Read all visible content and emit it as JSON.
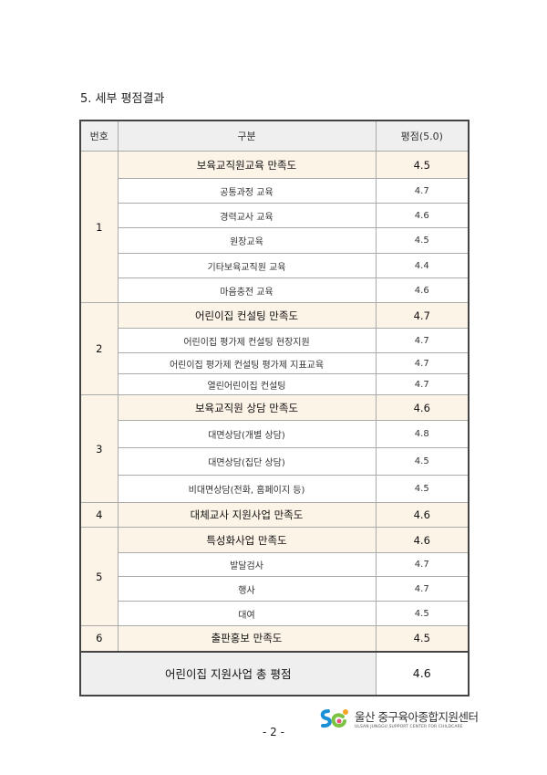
{
  "heading": "5. 세부 평점결과",
  "table": {
    "headers": [
      "번호",
      "구분",
      "평점(5.0)"
    ],
    "groups": [
      {
        "no": "1",
        "summary": {
          "label": "보육교직원교육 만족도",
          "score": "4.5"
        },
        "items": [
          {
            "label": "공통과정 교육",
            "score": "4.7"
          },
          {
            "label": "경력교사 교육",
            "score": "4.6"
          },
          {
            "label": "원장교육",
            "score": "4.5"
          },
          {
            "label": "기타보육교직원 교육",
            "score": "4.4"
          },
          {
            "label": "마음충전 교육",
            "score": "4.6"
          }
        ]
      },
      {
        "no": "2",
        "summary": {
          "label": "어린이집 컨설팅 만족도",
          "score": "4.7"
        },
        "items": [
          {
            "label": "어린이집 평가제 컨설팅 현장지원",
            "score": "4.7"
          },
          {
            "label": "어린이집 평가제 컨설팅 평가제 지표교육",
            "score": "4.7"
          },
          {
            "label": "열린어린이집 컨설팅",
            "score": "4.7"
          }
        ]
      },
      {
        "no": "3",
        "summary": {
          "label": "보육교직원 상담 만족도",
          "score": "4.6"
        },
        "items": [
          {
            "label": "대면상담(개별 상담)",
            "score": "4.8"
          },
          {
            "label": "대면상담(집단 상담)",
            "score": "4.5"
          },
          {
            "label": "비대면상담(전화, 홈페이지 등)",
            "score": "4.5"
          }
        ]
      },
      {
        "no": "4",
        "summary": {
          "label": "대체교사 지원사업 만족도",
          "score": "4.6"
        },
        "items": []
      },
      {
        "no": "5",
        "summary": {
          "label": "특성화사업 만족도",
          "score": "4.6"
        },
        "items": [
          {
            "label": "발달검사",
            "score": "4.7"
          },
          {
            "label": "행사",
            "score": "4.7"
          },
          {
            "label": "대여",
            "score": "4.5"
          }
        ]
      },
      {
        "no": "6",
        "summary": {
          "label": "출판홍보 만족도",
          "score": "4.5"
        },
        "items": []
      }
    ],
    "total": {
      "label": "어린이집 지원사업 총 평점",
      "score": "4.6"
    }
  },
  "footer": {
    "logo_name": "울산 중구육아종합지원센터",
    "logo_sub": "ULSAN JUNGGU SUPPORT CENTER FOR CHILDCARE",
    "page_number": "- 2 -"
  },
  "colors": {
    "summary_bg": "#fdf4e8",
    "header_bg": "#efefef"
  }
}
